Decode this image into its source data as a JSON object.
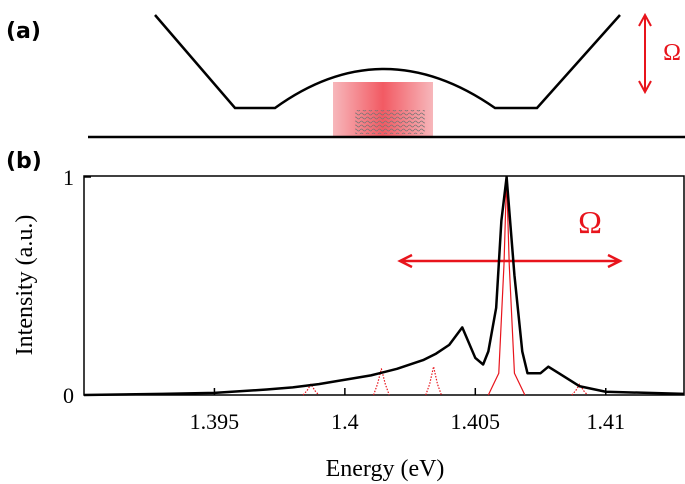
{
  "panel_a": {
    "label": "(a)",
    "omega": "Ω"
  },
  "chart_data": {
    "type": "line",
    "panel_label": "(b)",
    "annotation": "Ω",
    "xlabel": "Energy (eV)",
    "ylabel": "Intensity (a.u.)",
    "xlim": [
      1.39,
      1.413
    ],
    "ylim": [
      0,
      1
    ],
    "xticks": [
      1.395,
      1.4,
      1.405,
      1.41
    ],
    "yticks": [
      0,
      1
    ],
    "series": [
      {
        "color": "#000000",
        "style": "solid",
        "width": 2.5,
        "x": [
          1.39,
          1.393,
          1.395,
          1.397,
          1.398,
          1.399,
          1.4,
          1.401,
          1.402,
          1.403,
          1.4035,
          1.404,
          1.4045,
          1.405,
          1.4053,
          1.4055,
          1.4058,
          1.406,
          1.4062,
          1.4065,
          1.4068,
          1.407,
          1.4075,
          1.4078,
          1.4082,
          1.409,
          1.41,
          1.413
        ],
        "values": [
          0.0,
          0.005,
          0.01,
          0.025,
          0.035,
          0.05,
          0.07,
          0.09,
          0.12,
          0.16,
          0.19,
          0.23,
          0.31,
          0.17,
          0.14,
          0.2,
          0.4,
          0.8,
          1.0,
          0.55,
          0.2,
          0.1,
          0.1,
          0.13,
          0.1,
          0.04,
          0.015,
          0.005
        ]
      },
      {
        "color": "#e8141c",
        "style": "dotted",
        "width": 1.2,
        "x": [
          1.3984,
          1.39855,
          1.3987,
          1.39885,
          1.399,
          1.4,
          1.4011,
          1.40125,
          1.4014,
          1.40155,
          1.4017,
          1.402,
          1.4031,
          1.40325,
          1.4034,
          1.40355,
          1.4037,
          1.408,
          1.4087,
          1.40885,
          1.409,
          1.40915,
          1.4093
        ],
        "values": [
          0,
          0.02,
          0.05,
          0.02,
          0,
          null,
          0,
          0.05,
          0.12,
          0.05,
          0,
          null,
          0,
          0.05,
          0.13,
          0.05,
          0,
          null,
          0,
          0.02,
          0.05,
          0.02,
          0
        ]
      },
      {
        "color": "#e8141c",
        "style": "solid",
        "width": 1.2,
        "x": [
          1.4055,
          1.4059,
          1.4061,
          1.4062,
          1.4063,
          1.4065,
          1.4069
        ],
        "values": [
          0,
          0.1,
          0.6,
          1.0,
          0.6,
          0.1,
          0
        ]
      }
    ]
  }
}
